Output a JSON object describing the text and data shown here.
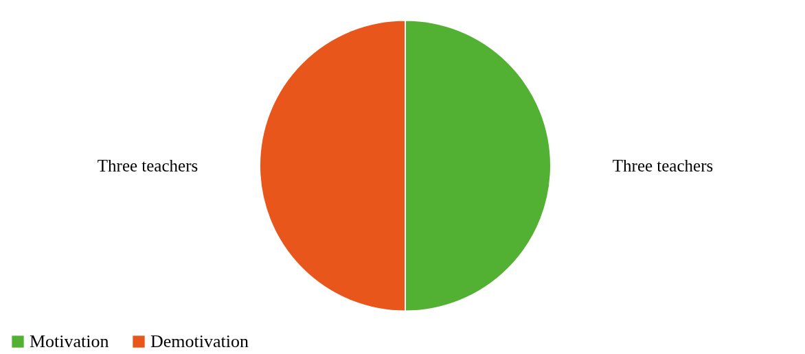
{
  "chart_data": {
    "type": "pie",
    "categories": [
      "Motivation",
      "Demotivation"
    ],
    "values": [
      50,
      50
    ],
    "colors": [
      "#52b132",
      "#e8561c"
    ],
    "value_labels": [
      "Three teachers",
      "Three teachers"
    ],
    "legend": "bottom"
  }
}
